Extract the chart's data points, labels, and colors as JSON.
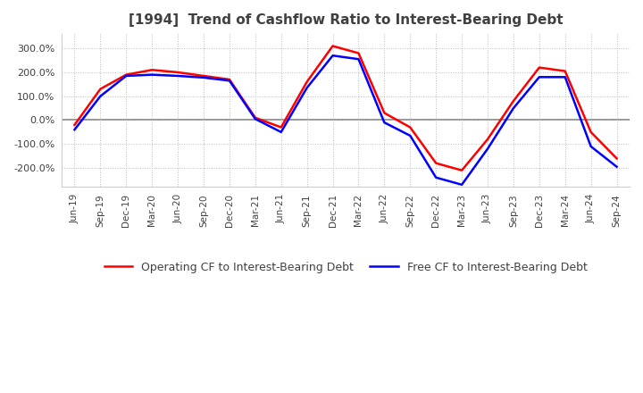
{
  "title": "[1994]  Trend of Cashflow Ratio to Interest-Bearing Debt",
  "x_labels": [
    "Jun-19",
    "Sep-19",
    "Dec-19",
    "Mar-20",
    "Jun-20",
    "Sep-20",
    "Dec-20",
    "Mar-21",
    "Jun-21",
    "Sep-21",
    "Dec-21",
    "Mar-22",
    "Jun-22",
    "Sep-22",
    "Dec-22",
    "Mar-23",
    "Jun-23",
    "Sep-23",
    "Dec-23",
    "Mar-24",
    "Jun-24",
    "Sep-24"
  ],
  "operating_cf": [
    -20,
    130,
    190,
    210,
    200,
    185,
    170,
    10,
    -30,
    160,
    310,
    280,
    30,
    -30,
    -180,
    -210,
    -80,
    80,
    220,
    205,
    -50,
    -160
  ],
  "free_cf": [
    -40,
    100,
    185,
    190,
    185,
    178,
    165,
    5,
    -50,
    135,
    270,
    255,
    -10,
    -65,
    -240,
    -270,
    -120,
    50,
    180,
    180,
    -110,
    -195
  ],
  "ylim": [
    -280,
    360
  ],
  "yticks": [
    -200,
    -100,
    0,
    100,
    200,
    300
  ],
  "operating_color": "#ff0000",
  "free_color": "#0000ff",
  "grid_color": "#bbbbbb",
  "background_color": "#ffffff",
  "legend_operating": "Operating CF to Interest-Bearing Debt",
  "legend_free": "Free CF to Interest-Bearing Debt",
  "title_color": "#404040"
}
